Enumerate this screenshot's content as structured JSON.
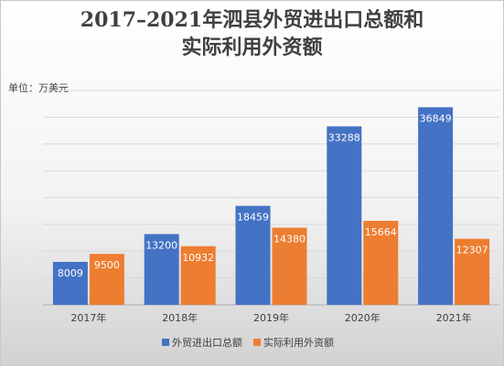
{
  "title_line1": "2017–2021年泗县外贸进出口总额和",
  "title_line2": "实际利用外资额",
  "unit_label": "单位：万美元",
  "chart_data": {
    "type": "bar",
    "title": "2017–2021年泗县外贸进出口总额和实际利用外资额",
    "categories": [
      "2017年",
      "2018年",
      "2019年",
      "2020年",
      "2021年"
    ],
    "series": [
      {
        "name": "外贸进出口总额",
        "color": "#4472c4",
        "values": [
          8009,
          13200,
          18459,
          33288,
          36849
        ]
      },
      {
        "name": "实际利用外资额",
        "color": "#ed7d31",
        "values": [
          9500,
          10932,
          14380,
          15664,
          12307
        ]
      }
    ],
    "ylim": [
      0,
      40000
    ],
    "grid": true,
    "legend_position": "bottom",
    "data_labels": true
  }
}
